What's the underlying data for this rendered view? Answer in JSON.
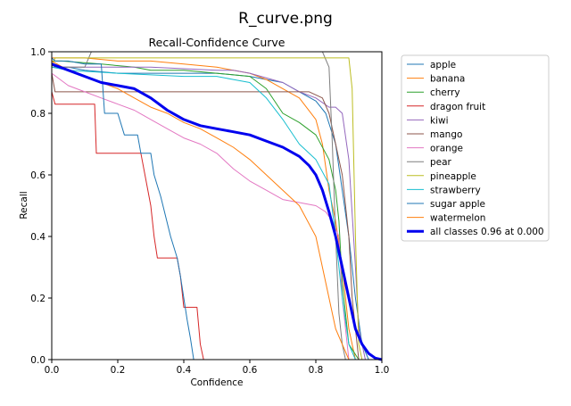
{
  "window": {
    "title": "R_curve.png"
  },
  "chart_data": {
    "type": "line",
    "title": "Recall-Confidence Curve",
    "xlabel": "Confidence",
    "ylabel": "Recall",
    "xlim": [
      0,
      1
    ],
    "ylim": [
      0,
      1
    ],
    "xticks": [
      "0.0",
      "0.2",
      "0.4",
      "0.6",
      "0.8",
      "1.0"
    ],
    "yticks": [
      "0.0",
      "0.2",
      "0.4",
      "0.6",
      "0.8",
      "1.0"
    ],
    "legend_position": "outside-right",
    "grid": false,
    "series": [
      {
        "name": "apple",
        "color": "#1f77b4",
        "width": 1,
        "x": [
          0,
          0.01,
          0.05,
          0.1,
          0.2,
          0.3,
          0.4,
          0.5,
          0.6,
          0.65,
          0.7,
          0.75,
          0.8,
          0.83,
          0.86,
          0.88,
          0.9,
          0.92,
          0.94,
          0.96
        ],
        "y": [
          0.96,
          0.95,
          0.95,
          0.94,
          0.93,
          0.93,
          0.93,
          0.93,
          0.92,
          0.91,
          0.9,
          0.87,
          0.84,
          0.8,
          0.7,
          0.55,
          0.4,
          0.2,
          0.05,
          0.0
        ]
      },
      {
        "name": "banana",
        "color": "#ff7f0e",
        "width": 1,
        "x": [
          0,
          0.02,
          0.1,
          0.2,
          0.3,
          0.4,
          0.5,
          0.6,
          0.65,
          0.7,
          0.75,
          0.8,
          0.82,
          0.84,
          0.86,
          0.88,
          0.9,
          0.92
        ],
        "y": [
          0.98,
          0.98,
          0.98,
          0.97,
          0.97,
          0.96,
          0.95,
          0.93,
          0.91,
          0.88,
          0.85,
          0.78,
          0.7,
          0.55,
          0.45,
          0.3,
          0.1,
          0.0
        ]
      },
      {
        "name": "cherry",
        "color": "#2ca02c",
        "width": 1,
        "x": [
          0,
          0.03,
          0.15,
          0.25,
          0.3,
          0.4,
          0.5,
          0.6,
          0.65,
          0.7,
          0.75,
          0.8,
          0.84,
          0.86,
          0.87,
          0.88,
          0.9,
          0.93
        ],
        "y": [
          0.97,
          0.97,
          0.96,
          0.95,
          0.94,
          0.94,
          0.93,
          0.92,
          0.88,
          0.8,
          0.77,
          0.73,
          0.65,
          0.55,
          0.45,
          0.25,
          0.05,
          0.0
        ]
      },
      {
        "name": "dragon fruit",
        "color": "#d62728",
        "width": 1,
        "x": [
          0,
          0.01,
          0.13,
          0.135,
          0.27,
          0.3,
          0.31,
          0.32,
          0.38,
          0.39,
          0.4,
          0.44,
          0.45,
          0.46
        ],
        "y": [
          0.87,
          0.83,
          0.83,
          0.67,
          0.67,
          0.5,
          0.4,
          0.33,
          0.33,
          0.27,
          0.17,
          0.17,
          0.05,
          0.0
        ]
      },
      {
        "name": "kiwi",
        "color": "#9467bd",
        "width": 1,
        "x": [
          0,
          0.02,
          0.1,
          0.2,
          0.3,
          0.5,
          0.55,
          0.6,
          0.7,
          0.75,
          0.8,
          0.84,
          0.86,
          0.88,
          0.9,
          0.92,
          0.93,
          0.95
        ],
        "y": [
          0.96,
          0.95,
          0.95,
          0.95,
          0.95,
          0.94,
          0.94,
          0.93,
          0.9,
          0.87,
          0.85,
          0.82,
          0.82,
          0.8,
          0.65,
          0.3,
          0.1,
          0.0
        ]
      },
      {
        "name": "mango",
        "color": "#8c564b",
        "width": 1,
        "x": [
          0,
          0.01,
          0.1,
          0.3,
          0.5,
          0.7,
          0.78,
          0.82,
          0.84,
          0.86,
          0.88,
          0.9,
          0.91,
          0.93
        ],
        "y": [
          0.93,
          0.87,
          0.87,
          0.87,
          0.87,
          0.87,
          0.87,
          0.85,
          0.8,
          0.7,
          0.6,
          0.4,
          0.2,
          0.0
        ]
      },
      {
        "name": "orange",
        "color": "#e377c2",
        "width": 1,
        "x": [
          0,
          0.05,
          0.1,
          0.15,
          0.2,
          0.25,
          0.3,
          0.35,
          0.4,
          0.45,
          0.5,
          0.55,
          0.6,
          0.65,
          0.7,
          0.75,
          0.8,
          0.83,
          0.85,
          0.87,
          0.88,
          0.9
        ],
        "y": [
          0.93,
          0.89,
          0.87,
          0.85,
          0.83,
          0.81,
          0.78,
          0.75,
          0.72,
          0.7,
          0.67,
          0.62,
          0.58,
          0.55,
          0.52,
          0.51,
          0.5,
          0.48,
          0.45,
          0.4,
          0.2,
          0.0
        ]
      },
      {
        "name": "pear",
        "color": "#7f7f7f",
        "width": 1,
        "x": [
          0,
          0.1,
          0.12,
          0.2,
          0.4,
          0.6,
          0.8,
          0.82,
          0.84,
          0.85,
          0.86,
          0.87,
          0.88,
          0.89
        ],
        "y": [
          0.95,
          0.95,
          1.0,
          1.0,
          1.0,
          1.0,
          1.0,
          1.0,
          0.95,
          0.7,
          0.4,
          0.15,
          0.05,
          0.0
        ]
      },
      {
        "name": "pineapple",
        "color": "#bcbd22",
        "width": 1,
        "x": [
          0,
          0.01,
          0.2,
          0.5,
          0.7,
          0.9,
          0.91,
          0.92,
          0.93,
          0.94
        ],
        "y": [
          0.95,
          0.98,
          0.98,
          0.98,
          0.98,
          0.98,
          0.88,
          0.4,
          0.05,
          0.0
        ]
      },
      {
        "name": "strawberry",
        "color": "#17becf",
        "width": 1,
        "x": [
          0,
          0.05,
          0.2,
          0.4,
          0.5,
          0.55,
          0.6,
          0.65,
          0.7,
          0.75,
          0.8,
          0.84,
          0.86,
          0.88,
          0.9,
          0.92
        ],
        "y": [
          0.95,
          0.94,
          0.93,
          0.92,
          0.92,
          0.91,
          0.9,
          0.85,
          0.78,
          0.7,
          0.65,
          0.57,
          0.4,
          0.2,
          0.05,
          0.0
        ]
      },
      {
        "name": "sugar apple",
        "color": "#1f77b4",
        "width": 1,
        "x": [
          0,
          0.01,
          0.05,
          0.1,
          0.15,
          0.16,
          0.2,
          0.22,
          0.26,
          0.27,
          0.3,
          0.31,
          0.33,
          0.36,
          0.38,
          0.39,
          0.4,
          0.41,
          0.42,
          0.43
        ],
        "y": [
          0.98,
          0.97,
          0.97,
          0.96,
          0.96,
          0.8,
          0.8,
          0.73,
          0.73,
          0.67,
          0.67,
          0.6,
          0.53,
          0.4,
          0.33,
          0.27,
          0.2,
          0.13,
          0.07,
          0.0
        ]
      },
      {
        "name": "watermelon",
        "color": "#ff7f0e",
        "width": 1,
        "x": [
          0,
          0.05,
          0.1,
          0.15,
          0.2,
          0.25,
          0.3,
          0.35,
          0.4,
          0.45,
          0.5,
          0.55,
          0.6,
          0.65,
          0.7,
          0.75,
          0.8,
          0.82,
          0.84,
          0.86,
          0.88,
          0.9
        ],
        "y": [
          0.97,
          0.94,
          0.92,
          0.9,
          0.88,
          0.85,
          0.82,
          0.8,
          0.77,
          0.75,
          0.72,
          0.69,
          0.65,
          0.6,
          0.55,
          0.5,
          0.4,
          0.3,
          0.2,
          0.1,
          0.05,
          0.0
        ]
      },
      {
        "name": "all classes 0.96 at 0.000",
        "color": "#0000ee",
        "width": 3,
        "x": [
          0,
          0.05,
          0.1,
          0.15,
          0.2,
          0.25,
          0.3,
          0.35,
          0.4,
          0.45,
          0.5,
          0.55,
          0.6,
          0.65,
          0.7,
          0.75,
          0.78,
          0.8,
          0.82,
          0.84,
          0.86,
          0.88,
          0.9,
          0.92,
          0.94,
          0.96,
          0.98,
          1.0
        ],
        "y": [
          0.96,
          0.94,
          0.92,
          0.9,
          0.89,
          0.88,
          0.85,
          0.81,
          0.78,
          0.76,
          0.75,
          0.74,
          0.73,
          0.71,
          0.69,
          0.66,
          0.63,
          0.6,
          0.55,
          0.48,
          0.4,
          0.3,
          0.2,
          0.1,
          0.05,
          0.02,
          0.005,
          0.0
        ]
      }
    ]
  }
}
